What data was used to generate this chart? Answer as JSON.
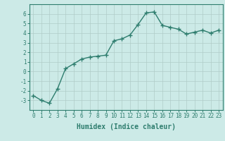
{
  "x": [
    0,
    1,
    2,
    3,
    4,
    5,
    6,
    7,
    8,
    9,
    10,
    11,
    12,
    13,
    14,
    15,
    16,
    17,
    18,
    19,
    20,
    21,
    22,
    23
  ],
  "y": [
    -2.5,
    -3.0,
    -3.3,
    -1.8,
    0.3,
    0.8,
    1.3,
    1.5,
    1.6,
    1.7,
    3.2,
    3.4,
    3.8,
    4.9,
    6.1,
    6.2,
    4.8,
    4.6,
    4.4,
    3.9,
    4.1,
    4.3,
    4.0,
    4.3
  ],
  "line_color": "#2e7d6e",
  "marker": "+",
  "marker_size": 4,
  "marker_linewidth": 1.0,
  "background_color": "#cceae7",
  "grid_color": "#b0ccc8",
  "xlabel": "Humidex (Indice chaleur)",
  "ylim": [
    -4,
    7
  ],
  "xlim": [
    -0.5,
    23.5
  ],
  "yticks": [
    -3,
    -2,
    -1,
    0,
    1,
    2,
    3,
    4,
    5,
    6
  ],
  "xticks": [
    0,
    1,
    2,
    3,
    4,
    5,
    6,
    7,
    8,
    9,
    10,
    11,
    12,
    13,
    14,
    15,
    16,
    17,
    18,
    19,
    20,
    21,
    22,
    23
  ],
  "axis_color": "#2e7d6e",
  "tick_color": "#2e7d6e",
  "label_color": "#2e7d6e",
  "xlabel_fontsize": 7,
  "tick_fontsize": 5.5,
  "linewidth": 1.0
}
